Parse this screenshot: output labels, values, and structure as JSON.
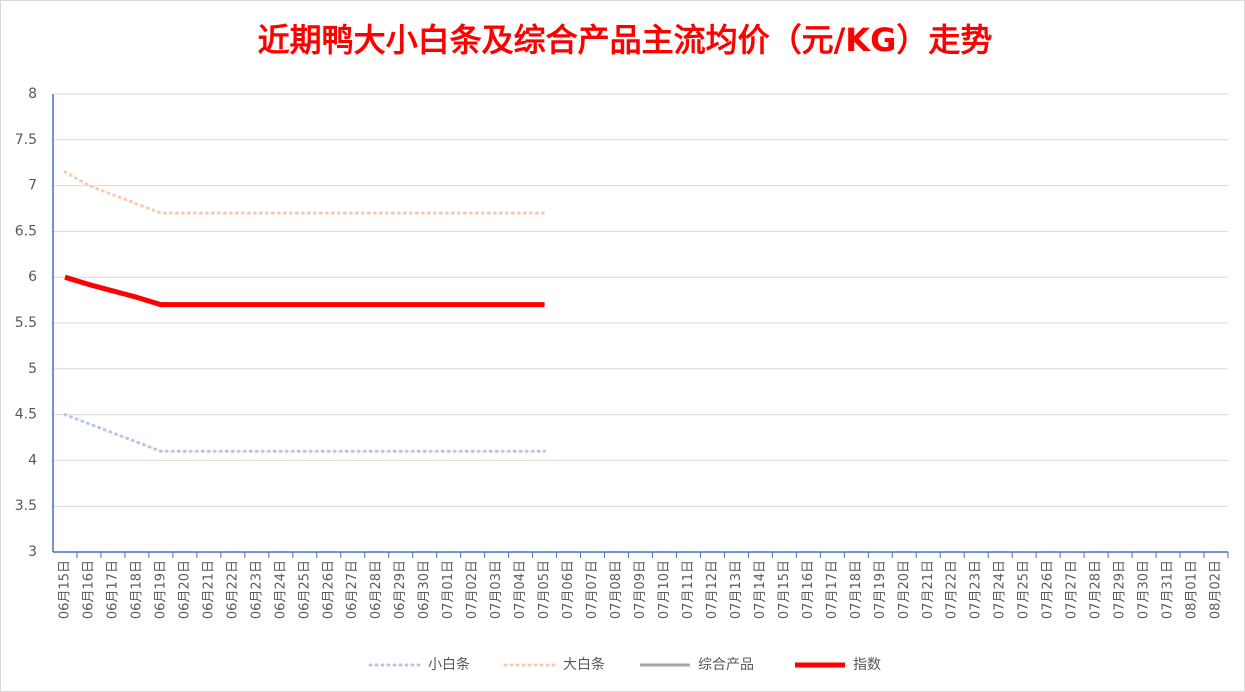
{
  "chart_data": {
    "type": "line",
    "title": "近期鸭大小白条及综合产品主流均价（元/KG）走势",
    "categories": [
      "06月15日",
      "06月16日",
      "06月17日",
      "06月18日",
      "06月19日",
      "06月20日",
      "06月21日",
      "06月22日",
      "06月23日",
      "06月24日",
      "06月25日",
      "06月26日",
      "06月27日",
      "06月28日",
      "06月29日",
      "06月30日",
      "07月01日",
      "07月02日",
      "07月03日",
      "07月04日",
      "07月05日",
      "07月06日",
      "07月07日",
      "07月08日",
      "07月09日",
      "07月10日",
      "07月11日",
      "07月12日",
      "07月13日",
      "07月14日",
      "07月15日",
      "07月16日",
      "07月17日",
      "07月18日",
      "07月19日",
      "07月20日",
      "07月21日",
      "07月22日",
      "07月23日",
      "07月24日",
      "07月25日",
      "07月26日",
      "07月27日",
      "07月28日",
      "07月29日",
      "07月30日",
      "07月31日",
      "08月01日",
      "08月02日"
    ],
    "series": [
      {
        "name": "小白条",
        "color": "#b4c7e7",
        "dash": "dotted",
        "values": [
          4.5,
          4.4,
          4.3,
          4.2,
          4.1,
          4.1,
          4.1,
          4.1,
          4.1,
          4.1,
          4.1,
          4.1,
          4.1,
          4.1,
          4.1,
          4.1,
          4.1,
          4.1,
          4.1,
          4.1,
          4.1,
          null,
          null,
          null,
          null,
          null,
          null,
          null,
          null,
          null,
          null,
          null,
          null,
          null,
          null,
          null,
          null,
          null,
          null,
          null,
          null,
          null,
          null,
          null,
          null,
          null,
          null,
          null,
          null
        ]
      },
      {
        "name": "大白条",
        "color": "#f8cbad",
        "dash": "dotted",
        "values": [
          7.15,
          7.0,
          6.9,
          6.8,
          6.7,
          6.7,
          6.7,
          6.7,
          6.7,
          6.7,
          6.7,
          6.7,
          6.7,
          6.7,
          6.7,
          6.7,
          6.7,
          6.7,
          6.7,
          6.7,
          6.7,
          null,
          null,
          null,
          null,
          null,
          null,
          null,
          null,
          null,
          null,
          null,
          null,
          null,
          null,
          null,
          null,
          null,
          null,
          null,
          null,
          null,
          null,
          null,
          null,
          null,
          null,
          null,
          null
        ]
      },
      {
        "name": "综合产品",
        "color": "#a5a5a5",
        "dash": "solid",
        "values": [
          6.0,
          5.92,
          5.85,
          5.78,
          5.7,
          5.7,
          5.7,
          5.7,
          5.7,
          5.7,
          5.7,
          5.7,
          5.7,
          5.7,
          5.7,
          5.7,
          5.7,
          5.7,
          5.7,
          5.7,
          5.7,
          null,
          null,
          null,
          null,
          null,
          null,
          null,
          null,
          null,
          null,
          null,
          null,
          null,
          null,
          null,
          null,
          null,
          null,
          null,
          null,
          null,
          null,
          null,
          null,
          null,
          null,
          null,
          null
        ]
      },
      {
        "name": "指数",
        "color": "#ff0000",
        "dash": "solid",
        "values": [
          6.0,
          5.92,
          5.85,
          5.78,
          5.7,
          5.7,
          5.7,
          5.7,
          5.7,
          5.7,
          5.7,
          5.7,
          5.7,
          5.7,
          5.7,
          5.7,
          5.7,
          5.7,
          5.7,
          5.7,
          5.7,
          null,
          null,
          null,
          null,
          null,
          null,
          null,
          null,
          null,
          null,
          null,
          null,
          null,
          null,
          null,
          null,
          null,
          null,
          null,
          null,
          null,
          null,
          null,
          null,
          null,
          null,
          null,
          null
        ]
      }
    ],
    "ylim": [
      3,
      8
    ],
    "yticks": [
      3,
      3.5,
      4,
      4.5,
      5,
      5.5,
      6,
      6.5,
      7,
      7.5,
      8
    ],
    "grid": true,
    "legend": "bottom"
  }
}
